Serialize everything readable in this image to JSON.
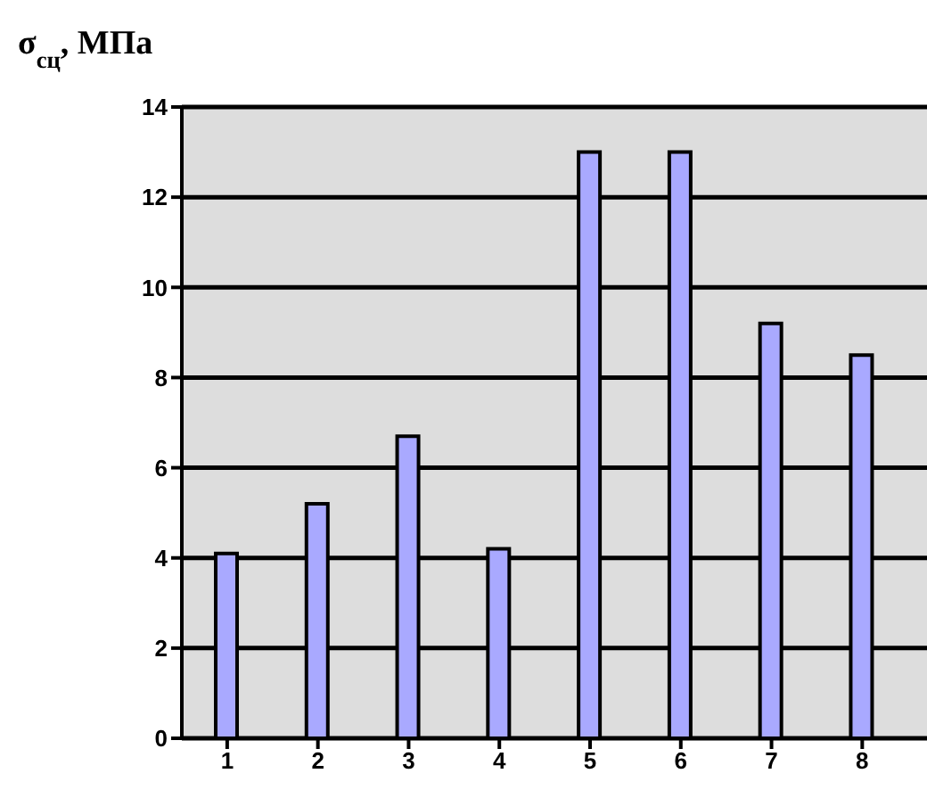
{
  "chart_data": {
    "type": "bar",
    "ylabel": "σ$_{сц}$, МПа",
    "categories": [
      "1",
      "2",
      "3",
      "4",
      "5",
      "6",
      "7",
      "8",
      null
    ],
    "values": [
      4.1,
      5.2,
      6.7,
      4.2,
      13.0,
      13.0,
      9.2,
      8.5,
      null
    ],
    "color": "#a9a9ff",
    "ylim": [
      0,
      14
    ],
    "yticks": [
      0,
      2,
      4,
      6,
      8,
      10,
      12,
      14
    ],
    "grid": "y"
  }
}
